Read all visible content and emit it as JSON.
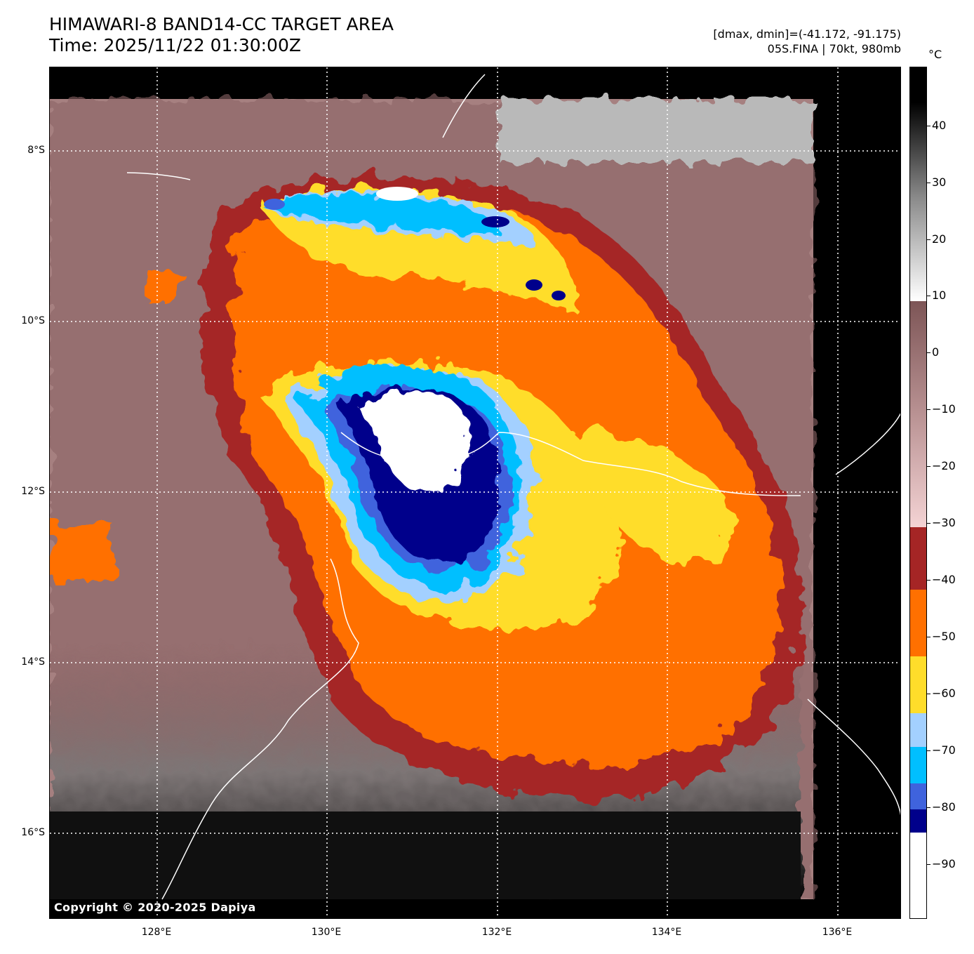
{
  "header": {
    "title_line1": "HIMAWARI-8 BAND14-CC TARGET AREA",
    "title_line2": "Time: 2025/11/22 01:30:00Z",
    "info_line1": "[dmax, dmin]=(-41.172, -91.175)",
    "info_line2": "05S.FINA | 70kt, 980mb"
  },
  "map": {
    "copyright": "Copyright © 2020-2025 Dapiya",
    "lat_labels": [
      "8°S",
      "10°S",
      "12°S",
      "14°S",
      "16°S"
    ],
    "lon_labels": [
      "128°E",
      "130°E",
      "132°E",
      "134°E",
      "136°E"
    ],
    "lat_range": [
      -16.8,
      -7.0
    ],
    "lon_range": [
      126.75,
      136.75
    ]
  },
  "colorbar": {
    "unit": "°C",
    "labels": [
      "40",
      "30",
      "20",
      "10",
      "0",
      "−10",
      "−20",
      "−30",
      "−40",
      "−50",
      "−60",
      "−70",
      "−80",
      "−90"
    ],
    "colors": {
      "bright_white": "#ffffff",
      "dark_navy": "#00008b",
      "royal_blue": "#3f63dd",
      "deep_sky": "#00bfff",
      "light_blue": "#a3d0ff",
      "yellow": "#ffdd2a",
      "orange": "#ff7000",
      "dark_red": "#a52525",
      "pink": "#f4d3d4",
      "brown": "#7d5556"
    }
  }
}
